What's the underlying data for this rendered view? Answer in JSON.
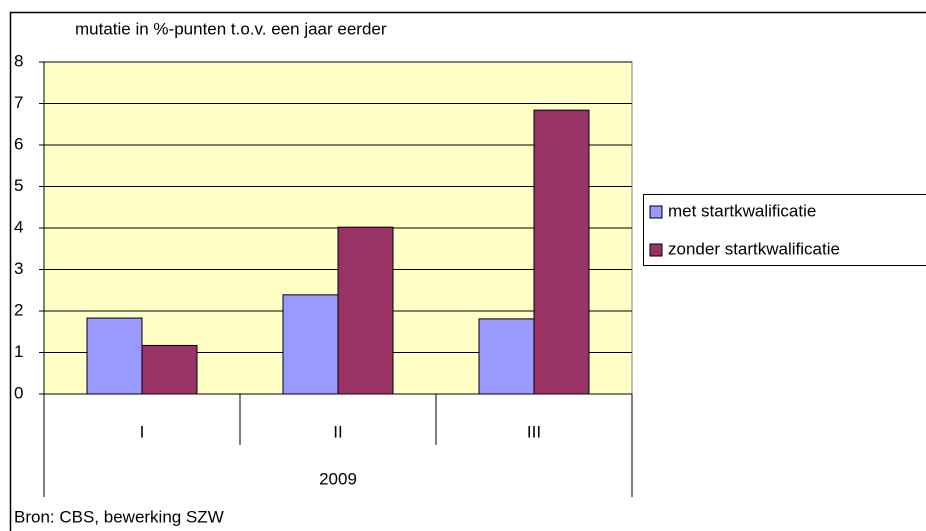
{
  "chart_data": {
    "type": "bar",
    "title": "mutatie in %-punten t.o.v. een jaar eerder",
    "categories": [
      "I",
      "II",
      "III"
    ],
    "category_group": "2009",
    "series": [
      {
        "name": "met startkwalificatie",
        "color": "#9999ff",
        "values": [
          1.83,
          2.39,
          1.81
        ]
      },
      {
        "name": "zonder startkwalificatie",
        "color": "#993366",
        "values": [
          1.17,
          4.02,
          6.84
        ]
      }
    ],
    "ylim": [
      0,
      8
    ],
    "yticks": [
      0,
      1,
      2,
      3,
      4,
      5,
      6,
      7,
      8
    ],
    "grid": true,
    "legend": "right",
    "source": "Bron: CBS, bewerking SZW"
  }
}
